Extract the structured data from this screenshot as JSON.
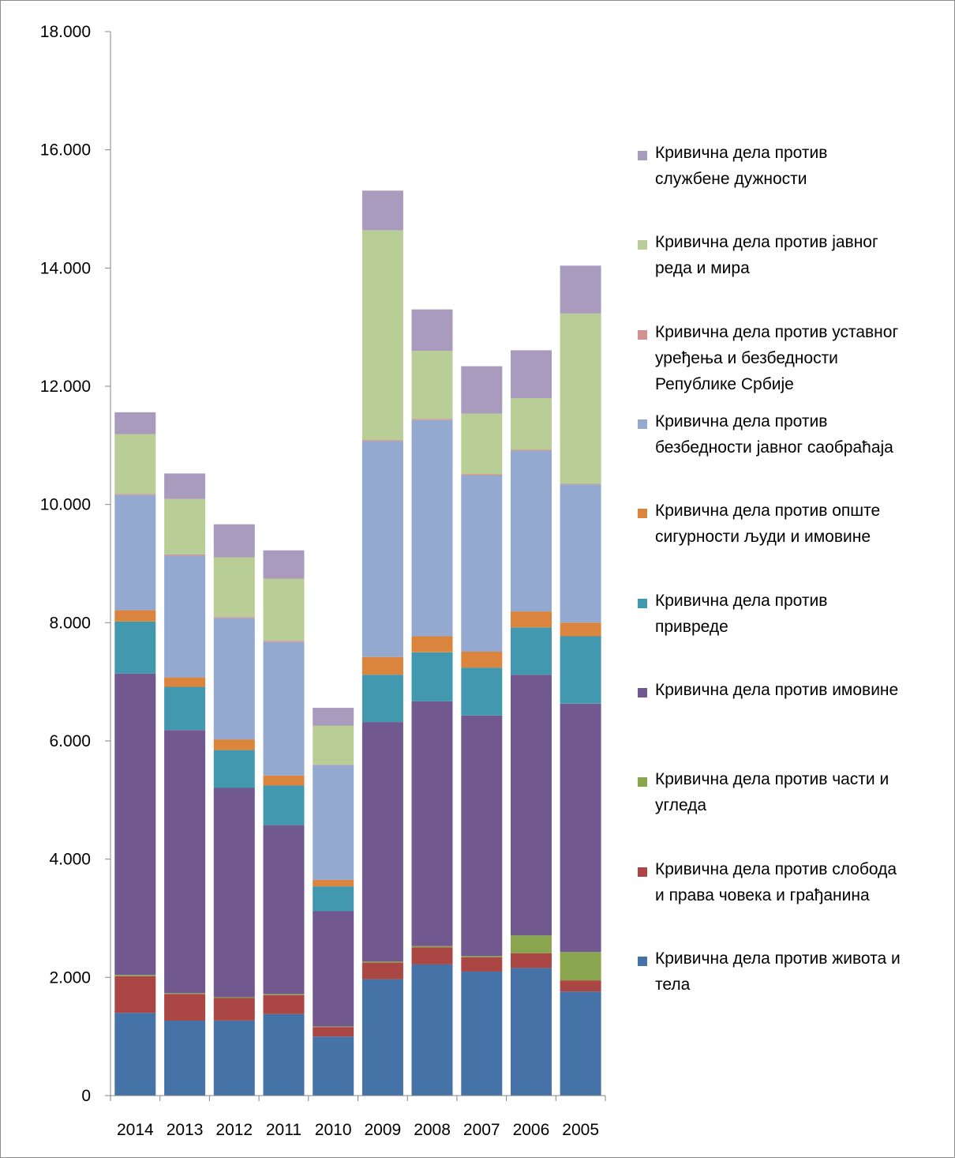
{
  "chart_data": {
    "type": "bar",
    "stacked": true,
    "categories": [
      "2014",
      "2013",
      "2012",
      "2011",
      "2010",
      "2009",
      "2008",
      "2007",
      "2006",
      "2005"
    ],
    "ylim": [
      0,
      18000
    ],
    "yticks": [
      "0",
      "2.000",
      "4.000",
      "6.000",
      "8.000",
      "10.000",
      "12.000",
      "14.000",
      "16.000",
      "18.000"
    ],
    "ytick_values": [
      0,
      2000,
      4000,
      6000,
      8000,
      10000,
      12000,
      14000,
      16000,
      18000
    ],
    "legend_position": "right",
    "grid": false,
    "series": [
      {
        "name": "Кривична дела против живота и тела",
        "color": "#4572A7",
        "values": [
          1400,
          1270,
          1270,
          1380,
          1000,
          1970,
          2220,
          2100,
          2160,
          1760
        ]
      },
      {
        "name": "Кривична дела против слобода и права човека и грађанина",
        "color": "#AA4643",
        "values": [
          620,
          450,
          380,
          320,
          160,
          280,
          290,
          240,
          250,
          190
        ]
      },
      {
        "name": "Кривична дела против части и угледа",
        "color": "#89A54E",
        "values": [
          20,
          15,
          15,
          15,
          10,
          20,
          20,
          20,
          300,
          480
        ]
      },
      {
        "name": "Кривична дела против имовине",
        "color": "#71588F",
        "values": [
          5100,
          4450,
          3540,
          2860,
          1950,
          4050,
          4140,
          4070,
          4410,
          4200
        ]
      },
      {
        "name": "Кривична дела против привреде",
        "color": "#4198AF",
        "values": [
          880,
          730,
          640,
          670,
          420,
          800,
          830,
          810,
          800,
          1140
        ]
      },
      {
        "name": "Кривична дела против опште сигурности људи и имовине",
        "color": "#DB843D",
        "values": [
          190,
          160,
          180,
          170,
          110,
          300,
          270,
          270,
          270,
          230
        ]
      },
      {
        "name": "Кривична дела против безбедности јавног саобраћаја",
        "color": "#93A9CF",
        "values": [
          1950,
          2060,
          2050,
          2260,
          1940,
          3650,
          3660,
          2980,
          2720,
          2340
        ]
      },
      {
        "name": "Кривична дела против уставног уређења и безбедности Републике Србије",
        "color": "#D19392",
        "values": [
          20,
          20,
          20,
          20,
          10,
          20,
          20,
          20,
          20,
          10
        ]
      },
      {
        "name": "Кривична дела против јавног реда и мира",
        "color": "#B9CD96",
        "values": [
          1010,
          940,
          1010,
          1050,
          660,
          3550,
          1150,
          1030,
          870,
          2880
        ]
      },
      {
        "name": "Кривична дела против службене дужности",
        "color": "#A99BBD",
        "values": [
          370,
          430,
          560,
          480,
          300,
          670,
          700,
          800,
          810,
          810
        ]
      }
    ]
  },
  "legend": {
    "items": [
      {
        "label": "Кривична дела против\nслужбене дужности",
        "color": "#A99BBD"
      },
      {
        "label": "Кривична дела против јавног\nреда и мира",
        "color": "#B9CD96"
      },
      {
        "label": "Кривична дела против уставног\nуређења и безбедности\nРепублике Србије",
        "color": "#D19392"
      },
      {
        "label": "Кривична дела против\nбезбедности јавног саобраћаја",
        "color": "#93A9CF"
      },
      {
        "label": "Кривична дела против опште\nсигурности људи и имовине",
        "color": "#DB843D"
      },
      {
        "label": "Кривична дела против\nпривреде",
        "color": "#4198AF"
      },
      {
        "label": "Кривична дела против имовине",
        "color": "#71588F"
      },
      {
        "label": "Кривична дела против части и\nугледа",
        "color": "#89A54E"
      },
      {
        "label": "Кривична дела против слобода\nи права човека и грађанина",
        "color": "#AA4643"
      },
      {
        "label": "Кривична дела против живота и\nтела",
        "color": "#4572A7"
      }
    ]
  }
}
